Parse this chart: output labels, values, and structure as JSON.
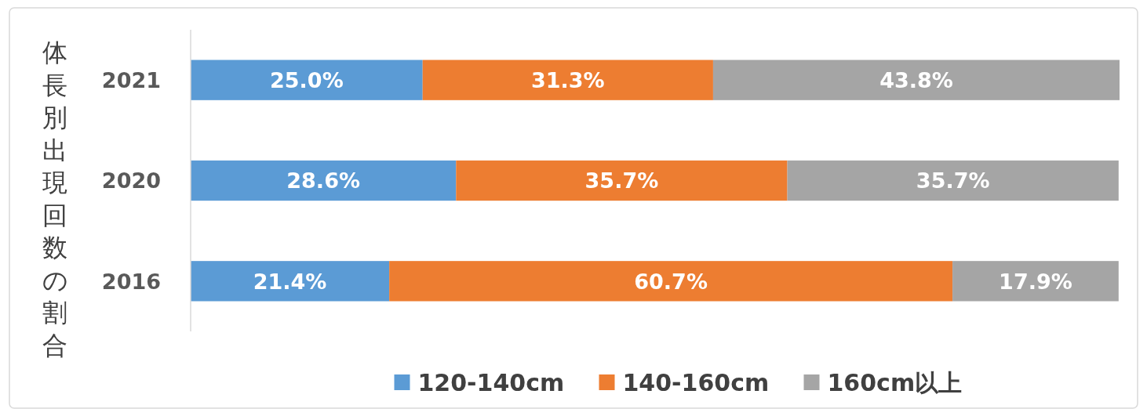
{
  "chart_data": {
    "type": "bar",
    "orientation": "horizontal",
    "stacked": true,
    "legend": "bottom",
    "ylabel": "体長別出現回数の割合",
    "categories": [
      "2021",
      "2020",
      "2016"
    ],
    "series": [
      {
        "name": "120-140cm",
        "color": "#5b9bd5",
        "values": [
          25.0,
          28.6,
          21.4
        ],
        "value_labels": [
          "25.0%",
          "28.6%",
          "21.4%"
        ]
      },
      {
        "name": "140-160cm",
        "color": "#ed7d31",
        "values": [
          31.3,
          35.7,
          60.7
        ],
        "value_labels": [
          "31.3%",
          "35.7%",
          "60.7%"
        ]
      },
      {
        "name": "160cm以上",
        "color": "#a5a5a5",
        "values": [
          43.8,
          35.7,
          17.9
        ],
        "value_labels": [
          "43.8%",
          "35.7%",
          "17.9%"
        ]
      }
    ]
  }
}
